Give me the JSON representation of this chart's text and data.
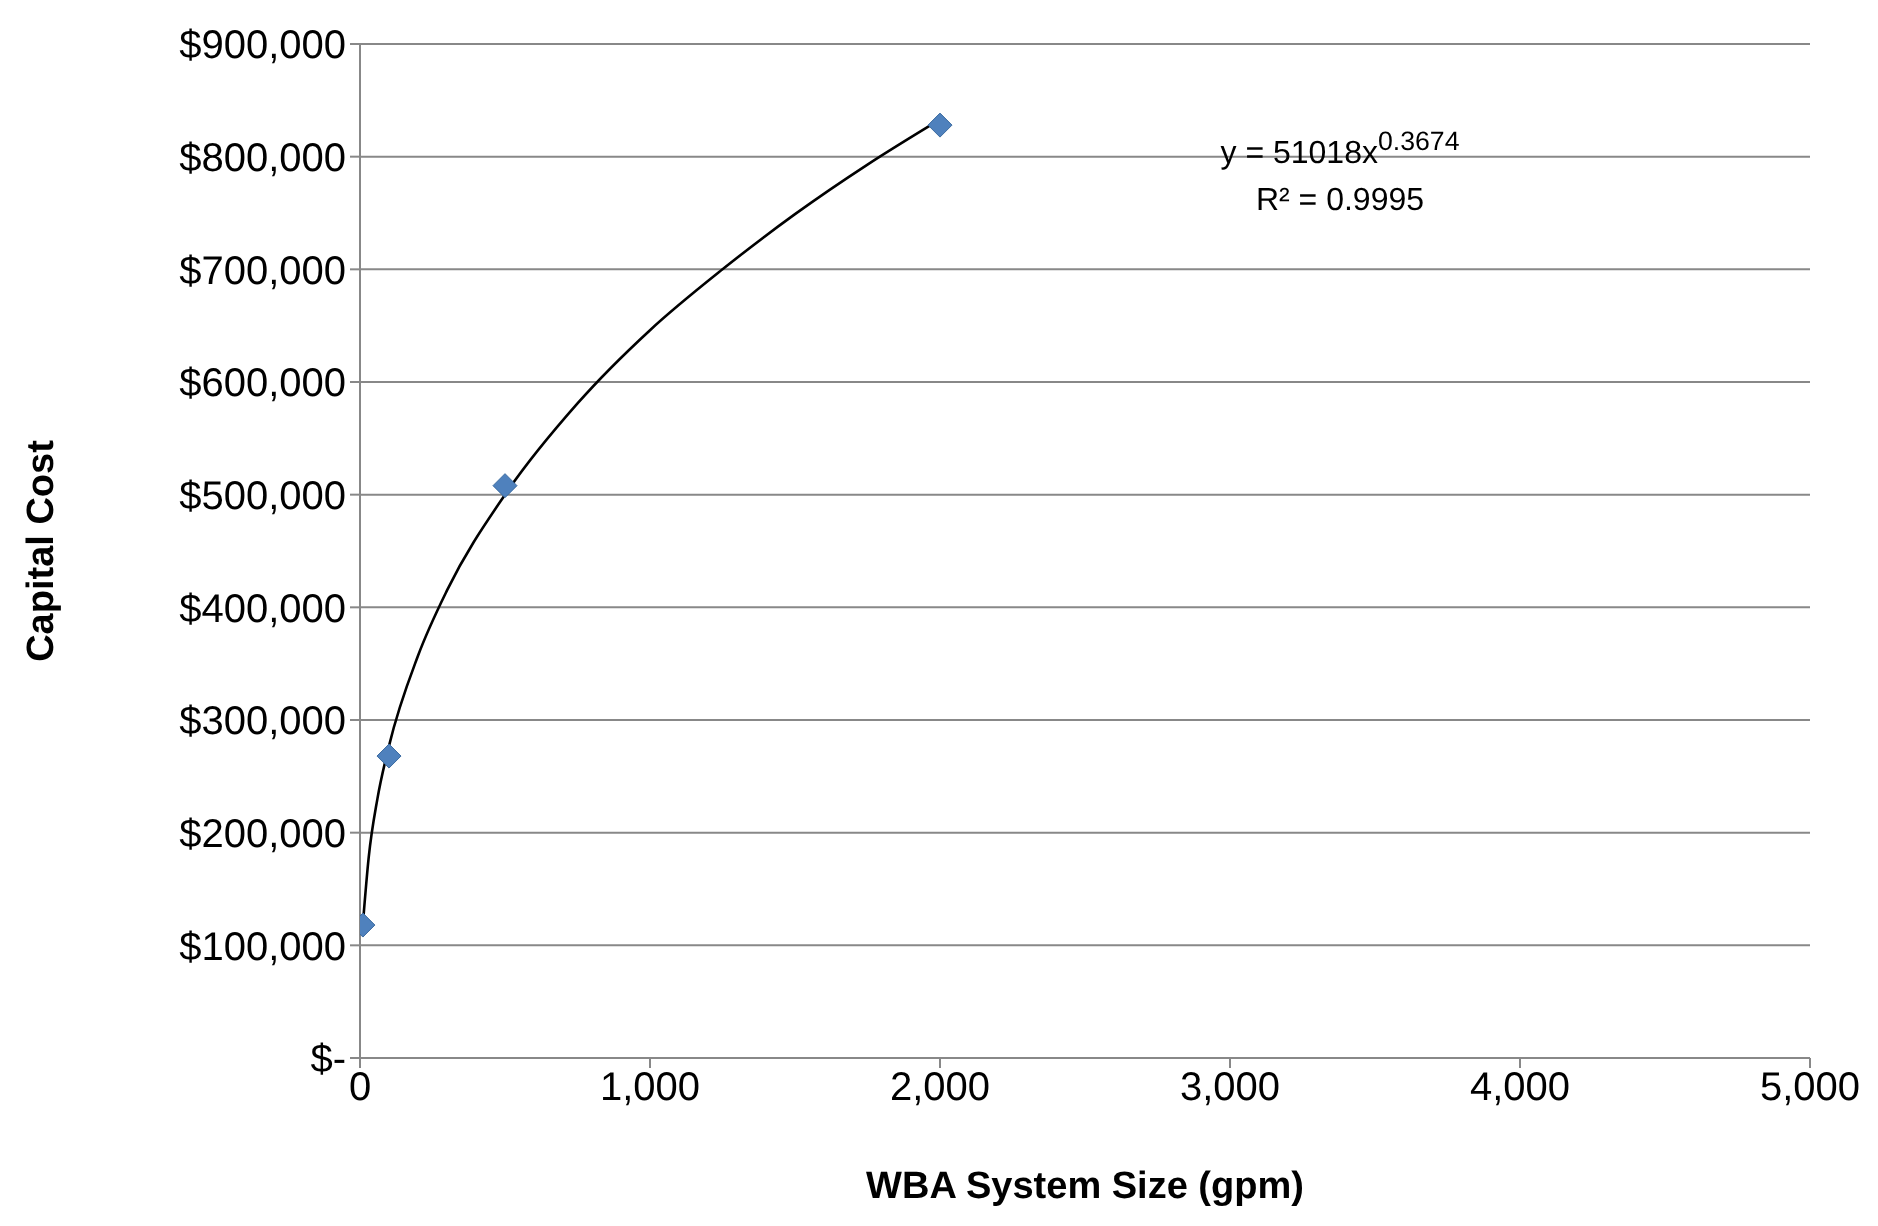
{
  "chart_data": {
    "type": "scatter",
    "xlabel": "WBA System Size (gpm)",
    "ylabel": "Capital Cost",
    "series": [
      {
        "color": "#4f81bd",
        "marker": "diamond",
        "x": [
          10,
          100,
          500,
          2000
        ],
        "values": [
          118000,
          268000,
          508000,
          828000
        ]
      },
      {
        "type": "line",
        "color": "#000000",
        "marker": "none",
        "line_style": "solid",
        "x": [
          10,
          30,
          60,
          100,
          200,
          300,
          500,
          750,
          1000,
          1250,
          1500,
          1750,
          2000
        ],
        "values": [
          119000,
          178000,
          230000,
          277000,
          357000,
          415000,
          500000,
          581000,
          646000,
          700000,
          749000,
          793000,
          833000
        ]
      }
    ],
    "xlim": [
      0,
      5000
    ],
    "xticks": [
      {
        "value": 0,
        "label": "0"
      },
      {
        "value": 1000,
        "label": "1,000"
      },
      {
        "value": 2000,
        "label": "2,000"
      },
      {
        "value": 3000,
        "label": "3,000"
      },
      {
        "value": 4000,
        "label": "4,000"
      },
      {
        "value": 5000,
        "label": "5,000"
      }
    ],
    "ylim": [
      0,
      900000
    ],
    "yticks": [
      {
        "value": 0,
        "label": "$-"
      },
      {
        "value": 100000,
        "label": "$100,000"
      },
      {
        "value": 200000,
        "label": "$200,000"
      },
      {
        "value": 300000,
        "label": "$300,000"
      },
      {
        "value": 400000,
        "label": "$400,000"
      },
      {
        "value": 500000,
        "label": "$500,000"
      },
      {
        "value": 600000,
        "label": "$600,000"
      },
      {
        "value": 700000,
        "label": "$700,000"
      },
      {
        "value": 800000,
        "label": "$800,000"
      },
      {
        "value": 900000,
        "label": "$900,000"
      }
    ],
    "grid": "y",
    "annotations": [
      "y = 51018x$^{0.3674}$",
      "R² = 0.9995"
    ]
  }
}
